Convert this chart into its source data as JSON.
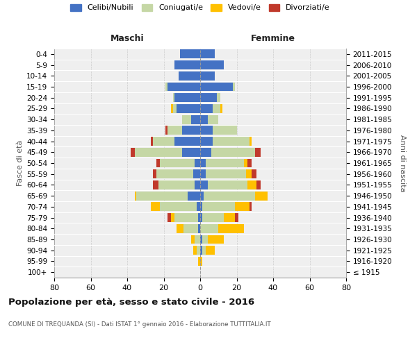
{
  "age_groups": [
    "100+",
    "95-99",
    "90-94",
    "85-89",
    "80-84",
    "75-79",
    "70-74",
    "65-69",
    "60-64",
    "55-59",
    "50-54",
    "45-49",
    "40-44",
    "35-39",
    "30-34",
    "25-29",
    "20-24",
    "15-19",
    "10-14",
    "5-9",
    "0-4"
  ],
  "birth_years": [
    "≤ 1915",
    "1916-1920",
    "1921-1925",
    "1926-1930",
    "1931-1935",
    "1936-1940",
    "1941-1945",
    "1946-1950",
    "1951-1955",
    "1956-1960",
    "1961-1965",
    "1966-1970",
    "1971-1975",
    "1976-1980",
    "1981-1985",
    "1986-1990",
    "1991-1995",
    "1996-2000",
    "2001-2005",
    "2006-2010",
    "2011-2015"
  ],
  "males": {
    "celibi": [
      0,
      0,
      0,
      0,
      1,
      1,
      2,
      7,
      3,
      4,
      3,
      10,
      14,
      10,
      5,
      13,
      14,
      18,
      12,
      14,
      11
    ],
    "coniugati": [
      0,
      0,
      2,
      3,
      8,
      13,
      20,
      28,
      20,
      20,
      19,
      26,
      12,
      8,
      5,
      2,
      1,
      1,
      0,
      0,
      0
    ],
    "vedovi": [
      0,
      1,
      2,
      2,
      4,
      2,
      5,
      1,
      0,
      0,
      0,
      0,
      0,
      0,
      0,
      1,
      0,
      0,
      0,
      0,
      0
    ],
    "divorziati": [
      0,
      0,
      0,
      0,
      0,
      2,
      0,
      0,
      3,
      2,
      2,
      2,
      1,
      1,
      0,
      0,
      0,
      0,
      0,
      0,
      0
    ]
  },
  "females": {
    "nubili": [
      0,
      0,
      1,
      1,
      0,
      1,
      1,
      2,
      4,
      3,
      3,
      6,
      7,
      7,
      4,
      7,
      9,
      18,
      8,
      13,
      8
    ],
    "coniugate": [
      0,
      0,
      2,
      3,
      10,
      12,
      18,
      28,
      22,
      22,
      21,
      24,
      20,
      13,
      6,
      4,
      2,
      1,
      0,
      0,
      0
    ],
    "vedove": [
      0,
      1,
      5,
      9,
      14,
      6,
      8,
      7,
      5,
      3,
      2,
      0,
      1,
      0,
      0,
      1,
      0,
      0,
      0,
      0,
      0
    ],
    "divorziate": [
      0,
      0,
      0,
      0,
      0,
      2,
      1,
      0,
      2,
      3,
      2,
      3,
      0,
      0,
      0,
      0,
      0,
      0,
      0,
      0,
      0
    ]
  },
  "colors": {
    "celibi": "#4472c4",
    "coniugati": "#c5d7a5",
    "vedovi": "#ffc000",
    "divorziati": "#c0392b"
  },
  "title": "Popolazione per età, sesso e stato civile - 2016",
  "subtitle": "COMUNE DI TREQUANDA (SI) - Dati ISTAT 1° gennaio 2016 - Elaborazione TUTTITALIA.IT",
  "xlabel_left": "Maschi",
  "xlabel_right": "Femmine",
  "ylabel_left": "Fasce di età",
  "ylabel_right": "Anni di nascita",
  "xlim": 80,
  "legend_labels": [
    "Celibi/Nubili",
    "Coniugati/e",
    "Vedovi/e",
    "Divorziati/e"
  ],
  "background_color": "#ffffff",
  "plot_bg": "#efefef",
  "grid_color": "#cccccc"
}
